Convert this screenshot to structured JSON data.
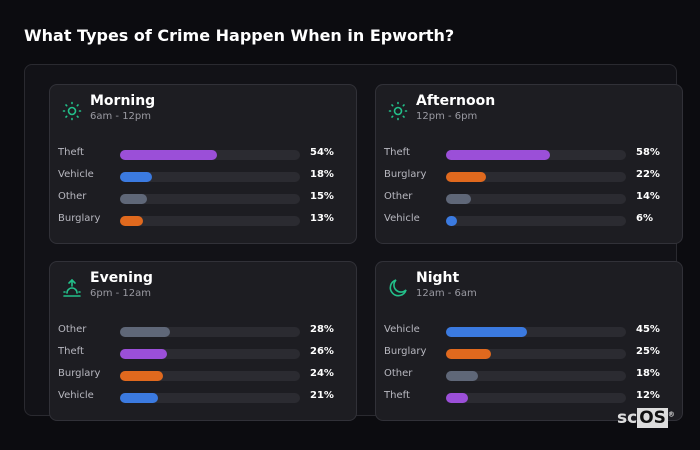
{
  "title": "What Types of Crime Happen When in Epworth?",
  "colors": {
    "Theft": "#9b4fd8",
    "Vehicle": "#3b7ae0",
    "Other": "#5f6778",
    "Burglary": "#e0691e",
    "accent": "#23c08a"
  },
  "cards": [
    {
      "name": "Morning",
      "range": "6am - 12pm",
      "icon": "sun-icon",
      "rows": [
        {
          "label": "Theft",
          "pct": 54,
          "text": "54%"
        },
        {
          "label": "Vehicle",
          "pct": 18,
          "text": "18%"
        },
        {
          "label": "Other",
          "pct": 15,
          "text": "15%"
        },
        {
          "label": "Burglary",
          "pct": 13,
          "text": "13%"
        }
      ]
    },
    {
      "name": "Afternoon",
      "range": "12pm - 6pm",
      "icon": "sun-icon",
      "rows": [
        {
          "label": "Theft",
          "pct": 58,
          "text": "58%"
        },
        {
          "label": "Burglary",
          "pct": 22,
          "text": "22%"
        },
        {
          "label": "Other",
          "pct": 14,
          "text": "14%"
        },
        {
          "label": "Vehicle",
          "pct": 6,
          "text": "6%"
        }
      ]
    },
    {
      "name": "Evening",
      "range": "6pm - 12am",
      "icon": "sunset-icon",
      "rows": [
        {
          "label": "Other",
          "pct": 28,
          "text": "28%"
        },
        {
          "label": "Theft",
          "pct": 26,
          "text": "26%"
        },
        {
          "label": "Burglary",
          "pct": 24,
          "text": "24%"
        },
        {
          "label": "Vehicle",
          "pct": 21,
          "text": "21%"
        }
      ]
    },
    {
      "name": "Night",
      "range": "12am - 6am",
      "icon": "moon-icon",
      "rows": [
        {
          "label": "Vehicle",
          "pct": 45,
          "text": "45%"
        },
        {
          "label": "Burglary",
          "pct": 25,
          "text": "25%"
        },
        {
          "label": "Other",
          "pct": 18,
          "text": "18%"
        },
        {
          "label": "Theft",
          "pct": 12,
          "text": "12%"
        }
      ]
    }
  ],
  "logo": {
    "sc": "sc",
    "os": "OS",
    "mark": "®"
  }
}
